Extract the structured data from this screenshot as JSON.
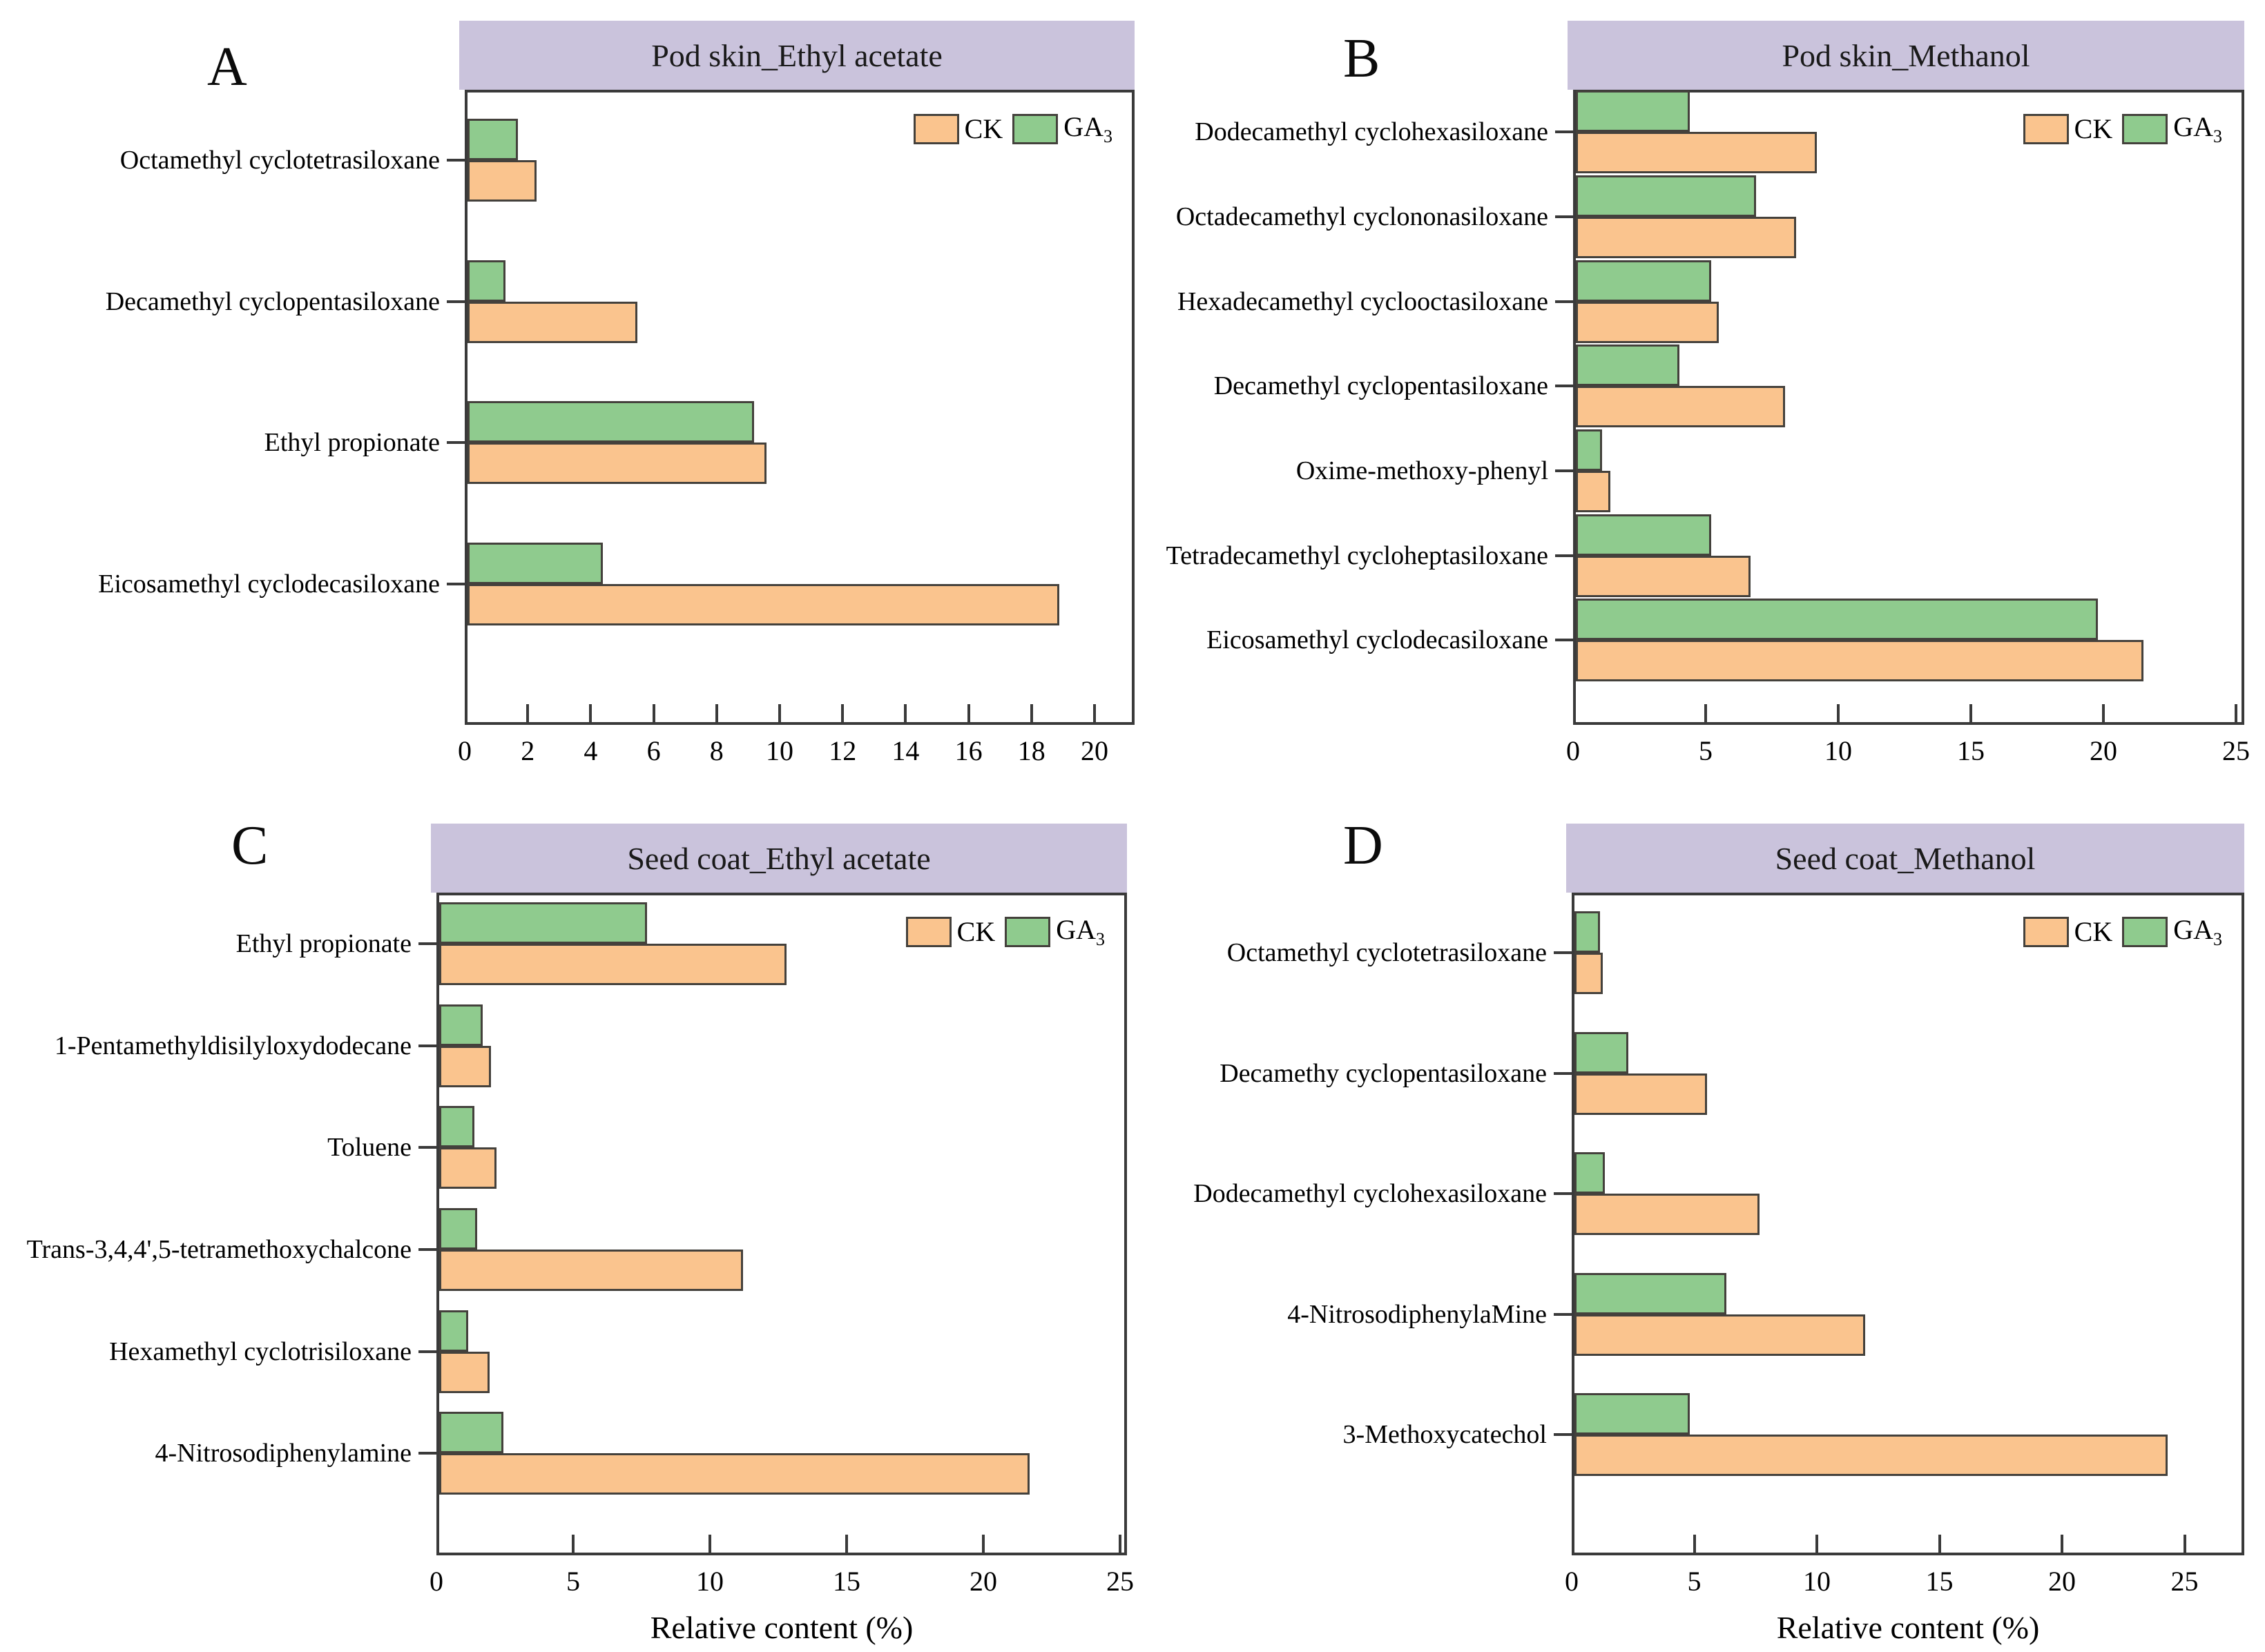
{
  "figure": {
    "legend": {
      "ck_label": "CK",
      "ga_label_base": "GA",
      "ga_label_sub": "3"
    },
    "colors": {
      "ck_fill": "#FAC48E",
      "ga_fill": "#8FCB8E",
      "bar_border": "#44413c",
      "header_bg": "#CAC3DC",
      "axis": "#3a3a3a"
    }
  },
  "chart_data": [
    {
      "id": "A",
      "letter": "A",
      "type": "bar",
      "orientation": "horizontal",
      "title": "Pod skin_Ethyl acetate",
      "xlabel": "",
      "xlim": [
        0,
        21.3
      ],
      "xticks": [
        0,
        2,
        4,
        6,
        8,
        10,
        12,
        14,
        16,
        18,
        20
      ],
      "legend_position": "top-right",
      "grid": false,
      "categories": [
        "Octamethyl cyclotetrasiloxane",
        "Decamethyl cyclopentasiloxane",
        "Ethyl propionate",
        "Eicosamethyl cyclodecasiloxane"
      ],
      "series": [
        {
          "name": "CK",
          "values": [
            2.2,
            5.4,
            9.5,
            18.8
          ]
        },
        {
          "name": "GA3",
          "values": [
            1.6,
            1.2,
            9.1,
            4.3
          ]
        }
      ]
    },
    {
      "id": "B",
      "letter": "B",
      "type": "bar",
      "orientation": "horizontal",
      "title": "Pod skin_Methanol",
      "xlabel": "",
      "xlim": [
        0,
        25.3
      ],
      "xticks": [
        0,
        5,
        10,
        15,
        20,
        25
      ],
      "legend_position": "top-right",
      "grid": false,
      "categories": [
        "Dodecamethyl cyclohexasiloxane",
        "Octadecamethyl cyclononasiloxane",
        "Hexadecamethyl cyclooctasiloxane",
        "Decamethyl cyclopentasiloxane",
        "Oxime-methoxy-phenyl",
        "Tetradecamethyl cycloheptasiloxane",
        "Eicosamethyl cyclodecasiloxane"
      ],
      "series": [
        {
          "name": "CK",
          "values": [
            9.1,
            8.3,
            5.4,
            7.9,
            1.3,
            6.6,
            21.4
          ]
        },
        {
          "name": "GA3",
          "values": [
            4.3,
            6.8,
            5.1,
            3.9,
            1.0,
            5.1,
            19.7
          ]
        }
      ]
    },
    {
      "id": "C",
      "letter": "C",
      "type": "bar",
      "orientation": "horizontal",
      "title": "Seed coat_Ethyl acetate",
      "xlabel": "Relative content (%)",
      "xlim": [
        0,
        25.3
      ],
      "xticks": [
        0,
        5,
        10,
        15,
        20,
        25
      ],
      "legend_position": "top-right",
      "grid": false,
      "categories": [
        "Ethyl propionate",
        "1-Pentamethyldisilyloxydodecane",
        "Toluene",
        "Trans-3,4,4',5-tetramethoxychalcone",
        "Hexamethyl cyclotrisiloxane",
        "4-Nitrosodiphenylamine"
      ],
      "series": [
        {
          "name": "CK",
          "values": [
            12.7,
            1.9,
            2.1,
            11.1,
            1.85,
            21.6
          ]
        },
        {
          "name": "GA3",
          "values": [
            7.6,
            1.6,
            1.3,
            1.4,
            1.05,
            2.35
          ]
        }
      ]
    },
    {
      "id": "D",
      "letter": "D",
      "type": "bar",
      "orientation": "horizontal",
      "title": "Seed coat_Methanol",
      "xlabel": "Relative content (%)",
      "xlim": [
        0,
        27.4
      ],
      "xticks": [
        0,
        5,
        10,
        15,
        20,
        25
      ],
      "legend_position": "top-right",
      "grid": false,
      "categories": [
        "Octamethyl cyclotetrasiloxane",
        "Decamethy cyclopentasiloxane",
        "Dodecamethyl cyclohexasiloxane",
        "4-NitrosodiphenylaMine",
        "3-Methoxycatechol"
      ],
      "series": [
        {
          "name": "CK",
          "values": [
            1.15,
            5.4,
            7.55,
            11.85,
            24.2
          ]
        },
        {
          "name": "GA3",
          "values": [
            1.05,
            2.2,
            1.25,
            6.2,
            4.7
          ]
        }
      ]
    }
  ]
}
